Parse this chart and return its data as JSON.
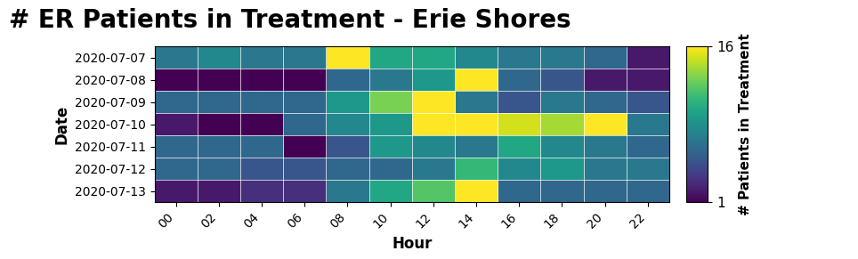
{
  "title": "# ER Patients in Treatment - Erie Shores",
  "xlabel": "Hour",
  "ylabel": "Date",
  "colorbar_label": "# Patients in Treatment",
  "vmin": 1,
  "vmax": 16,
  "cmap": "viridis",
  "dates": [
    "2020-07-07",
    "2020-07-08",
    "2020-07-09",
    "2020-07-10",
    "2020-07-11",
    "2020-07-12",
    "2020-07-13"
  ],
  "hours": [
    "00",
    "02",
    "04",
    "06",
    "08",
    "10",
    "12",
    "14",
    "16",
    "18",
    "20",
    "22"
  ],
  "data": [
    [
      7,
      8,
      7,
      7,
      16,
      10,
      10,
      8,
      7,
      7,
      6,
      2
    ],
    [
      1,
      1,
      1,
      1,
      6,
      7,
      9,
      16,
      6,
      5,
      2,
      2
    ],
    [
      6,
      6,
      6,
      6,
      9,
      13,
      16,
      7,
      5,
      7,
      6,
      5
    ],
    [
      2,
      1,
      1,
      6,
      8,
      9,
      16,
      16,
      15,
      14,
      16,
      7
    ],
    [
      6,
      6,
      6,
      1,
      5,
      9,
      8,
      7,
      10,
      8,
      7,
      6
    ],
    [
      6,
      6,
      5,
      5,
      6,
      6,
      7,
      11,
      8,
      9,
      7,
      7
    ],
    [
      2,
      2,
      3,
      3,
      7,
      10,
      12,
      16,
      6,
      6,
      6,
      6
    ]
  ],
  "background_color": "#ffffff",
  "title_fontsize": 20,
  "label_fontsize": 12,
  "tick_fontsize": 10,
  "colorbar_tick_fontsize": 11,
  "colorbar_label_fontsize": 11
}
